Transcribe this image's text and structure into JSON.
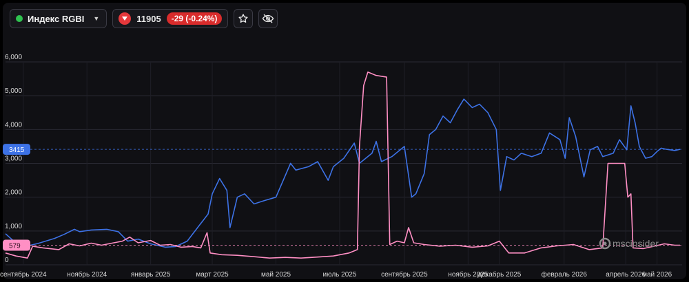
{
  "toolbar": {
    "instrument_name": "Индекс RGBI",
    "price": "11905",
    "change": "-29 (-0.24%)"
  },
  "icons": [
    "green-status-dot",
    "chevron-down-icon",
    "triangle-down-icon",
    "star-icon",
    "eye-off-icon"
  ],
  "watermark": "mscinsider",
  "colors": {
    "blue_series": "#3d72e6",
    "pink_series": "#ff8fc4",
    "negative": "#d92c2c"
  },
  "chart_data": {
    "type": "line",
    "title": "",
    "xlabel": "",
    "ylabel": "",
    "ylim": [
      0,
      6000
    ],
    "yticks": [
      "0",
      "1,000",
      "2,000",
      "3,000",
      "4,000",
      "5,000",
      "6,000"
    ],
    "xticks": [
      "сентябрь 2024",
      "ноябрь 2024",
      "январь 2025",
      "март 2025",
      "май 2025",
      "июль 2025",
      "сентябрь 2025",
      "ноябрь 2025",
      "декабрь 2025",
      "февраль 2026",
      "апрель 2026",
      "май 2026"
    ],
    "x_start": "2024-08-15",
    "x_end": "2026-05-25",
    "grid": true,
    "series": [
      {
        "color": "#3d72e6",
        "last_value": "3415",
        "points": [
          [
            "2024-08-15",
            920
          ],
          [
            "2024-08-25",
            640
          ],
          [
            "2024-09-05",
            560
          ],
          [
            "2024-09-15",
            630
          ],
          [
            "2024-10-01",
            780
          ],
          [
            "2024-10-10",
            900
          ],
          [
            "2024-10-20",
            1050
          ],
          [
            "2024-10-25",
            980
          ],
          [
            "2024-11-05",
            1030
          ],
          [
            "2024-11-20",
            1050
          ],
          [
            "2024-12-01",
            980
          ],
          [
            "2024-12-10",
            700
          ],
          [
            "2024-12-20",
            760
          ],
          [
            "2025-01-01",
            620
          ],
          [
            "2025-01-15",
            520
          ],
          [
            "2025-01-25",
            540
          ],
          [
            "2025-02-05",
            700
          ],
          [
            "2025-02-15",
            1100
          ],
          [
            "2025-02-25",
            1500
          ],
          [
            "2025-03-01",
            2100
          ],
          [
            "2025-03-08",
            2550
          ],
          [
            "2025-03-15",
            2200
          ],
          [
            "2025-03-18",
            1100
          ],
          [
            "2025-03-25",
            2000
          ],
          [
            "2025-04-01",
            2100
          ],
          [
            "2025-04-10",
            1800
          ],
          [
            "2025-04-20",
            1900
          ],
          [
            "2025-05-01",
            2000
          ],
          [
            "2025-05-15",
            3000
          ],
          [
            "2025-05-20",
            2800
          ],
          [
            "2025-06-01",
            2900
          ],
          [
            "2025-06-10",
            3050
          ],
          [
            "2025-06-20",
            2500
          ],
          [
            "2025-06-25",
            2900
          ],
          [
            "2025-07-05",
            3150
          ],
          [
            "2025-07-15",
            3600
          ],
          [
            "2025-07-20",
            3000
          ],
          [
            "2025-08-01",
            3300
          ],
          [
            "2025-08-05",
            3650
          ],
          [
            "2025-08-10",
            3050
          ],
          [
            "2025-08-20",
            3200
          ],
          [
            "2025-09-01",
            3500
          ],
          [
            "2025-09-08",
            2000
          ],
          [
            "2025-09-12",
            2100
          ],
          [
            "2025-09-20",
            2700
          ],
          [
            "2025-09-25",
            3850
          ],
          [
            "2025-10-01",
            4000
          ],
          [
            "2025-10-08",
            4400
          ],
          [
            "2025-10-15",
            4200
          ],
          [
            "2025-10-22",
            4600
          ],
          [
            "2025-10-28",
            4900
          ],
          [
            "2025-11-05",
            4650
          ],
          [
            "2025-11-12",
            4750
          ],
          [
            "2025-11-20",
            4500
          ],
          [
            "2025-11-28",
            4000
          ],
          [
            "2025-12-02",
            2200
          ],
          [
            "2025-12-08",
            3200
          ],
          [
            "2025-12-15",
            3100
          ],
          [
            "2025-12-22",
            3300
          ],
          [
            "2026-01-01",
            3200
          ],
          [
            "2026-01-10",
            3300
          ],
          [
            "2026-01-18",
            3900
          ],
          [
            "2026-01-28",
            3700
          ],
          [
            "2026-02-02",
            3150
          ],
          [
            "2026-02-06",
            4350
          ],
          [
            "2026-02-12",
            3800
          ],
          [
            "2026-02-20",
            2600
          ],
          [
            "2026-02-26",
            3400
          ],
          [
            "2026-03-05",
            3500
          ],
          [
            "2026-03-10",
            3200
          ],
          [
            "2026-03-20",
            3300
          ],
          [
            "2026-03-26",
            3700
          ],
          [
            "2026-04-02",
            3400
          ],
          [
            "2026-04-06",
            4700
          ],
          [
            "2026-04-10",
            4200
          ],
          [
            "2026-04-14",
            3500
          ],
          [
            "2026-04-20",
            3150
          ],
          [
            "2026-04-26",
            3200
          ],
          [
            "2026-05-01",
            3350
          ],
          [
            "2026-05-05",
            3450
          ],
          [
            "2026-05-10",
            3415
          ],
          [
            "2026-05-18",
            3380
          ],
          [
            "2026-05-23",
            3415
          ]
        ]
      },
      {
        "color": "#ff8fc4",
        "last_value": "579",
        "points": [
          [
            "2024-08-15",
            350
          ],
          [
            "2024-08-25",
            260
          ],
          [
            "2024-09-05",
            200
          ],
          [
            "2024-09-10",
            550
          ],
          [
            "2024-09-20",
            500
          ],
          [
            "2024-10-05",
            450
          ],
          [
            "2024-10-15",
            620
          ],
          [
            "2024-10-25",
            560
          ],
          [
            "2024-11-05",
            640
          ],
          [
            "2024-11-15",
            580
          ],
          [
            "2024-11-25",
            640
          ],
          [
            "2024-12-05",
            700
          ],
          [
            "2024-12-12",
            820
          ],
          [
            "2024-12-20",
            650
          ],
          [
            "2025-01-01",
            720
          ],
          [
            "2025-01-10",
            580
          ],
          [
            "2025-01-20",
            600
          ],
          [
            "2025-01-30",
            520
          ],
          [
            "2025-02-10",
            540
          ],
          [
            "2025-02-18",
            500
          ],
          [
            "2025-02-24",
            950
          ],
          [
            "2025-02-27",
            350
          ],
          [
            "2025-03-10",
            300
          ],
          [
            "2025-03-25",
            280
          ],
          [
            "2025-04-10",
            240
          ],
          [
            "2025-04-25",
            200
          ],
          [
            "2025-05-10",
            220
          ],
          [
            "2025-05-25",
            200
          ],
          [
            "2025-06-10",
            230
          ],
          [
            "2025-06-25",
            260
          ],
          [
            "2025-07-10",
            350
          ],
          [
            "2025-07-18",
            450
          ],
          [
            "2025-07-20",
            3500
          ],
          [
            "2025-07-24",
            5300
          ],
          [
            "2025-07-28",
            5700
          ],
          [
            "2025-08-05",
            5600
          ],
          [
            "2025-08-15",
            5550
          ],
          [
            "2025-08-18",
            600
          ],
          [
            "2025-08-25",
            700
          ],
          [
            "2025-09-01",
            650
          ],
          [
            "2025-09-05",
            1100
          ],
          [
            "2025-09-10",
            650
          ],
          [
            "2025-09-20",
            600
          ],
          [
            "2025-10-05",
            550
          ],
          [
            "2025-10-20",
            580
          ],
          [
            "2025-11-05",
            520
          ],
          [
            "2025-11-20",
            560
          ],
          [
            "2025-12-01",
            700
          ],
          [
            "2025-12-10",
            350
          ],
          [
            "2025-12-25",
            350
          ],
          [
            "2026-01-10",
            500
          ],
          [
            "2026-01-25",
            560
          ],
          [
            "2026-02-10",
            600
          ],
          [
            "2026-02-25",
            450
          ],
          [
            "2026-03-10",
            500
          ],
          [
            "2026-03-15",
            3000
          ],
          [
            "2026-03-25",
            3000
          ],
          [
            "2026-03-31",
            3000
          ],
          [
            "2026-04-03",
            2000
          ],
          [
            "2026-04-06",
            2100
          ],
          [
            "2026-04-08",
            500
          ],
          [
            "2026-04-18",
            480
          ],
          [
            "2026-04-28",
            550
          ],
          [
            "2026-05-08",
            620
          ],
          [
            "2026-05-18",
            580
          ],
          [
            "2026-05-23",
            579
          ]
        ]
      }
    ]
  }
}
